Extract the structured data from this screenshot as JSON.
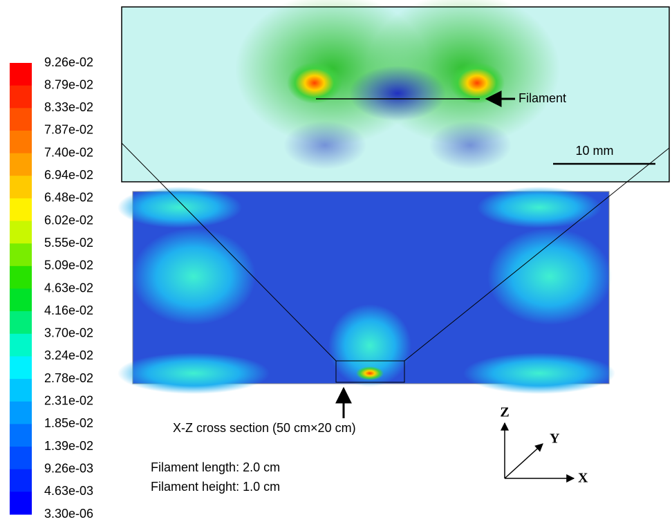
{
  "colorbar": {
    "labels": [
      "9.26e-02",
      "8.79e-02",
      "8.33e-02",
      "7.87e-02",
      "7.40e-02",
      "6.94e-02",
      "6.48e-02",
      "6.02e-02",
      "5.55e-02",
      "5.09e-02",
      "4.63e-02",
      "4.16e-02",
      "3.70e-02",
      "3.24e-02",
      "2.78e-02",
      "2.31e-02",
      "1.85e-02",
      "1.39e-02",
      "9.26e-03",
      "4.63e-03",
      "3.30e-06"
    ]
  },
  "annotations": {
    "filament": "Filament",
    "scale": "10 mm",
    "cross_section": "X-Z cross section (50 cm×20 cm)",
    "length": "Filament length: 2.0 cm",
    "height": "Filament height: 1.0 cm"
  },
  "axes": {
    "z": "Z",
    "y": "Y",
    "x": "X"
  }
}
